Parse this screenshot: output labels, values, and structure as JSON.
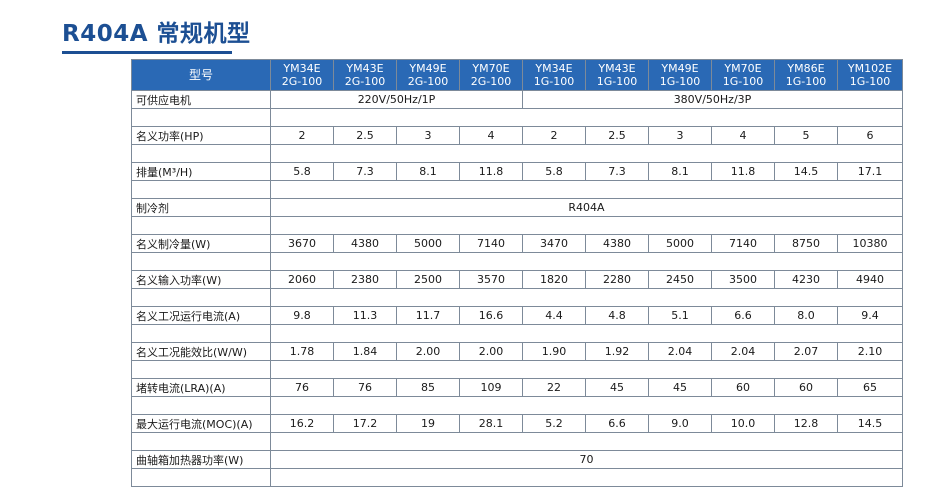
{
  "title": "R404A 常规机型",
  "table": {
    "param_header": "型号",
    "models": [
      {
        "line1": "YM34E",
        "line2": "2G-100"
      },
      {
        "line1": "YM43E",
        "line2": "2G-100"
      },
      {
        "line1": "YM49E",
        "line2": "2G-100"
      },
      {
        "line1": "YM70E",
        "line2": "2G-100"
      },
      {
        "line1": "YM34E",
        "line2": "1G-100"
      },
      {
        "line1": "YM43E",
        "line2": "1G-100"
      },
      {
        "line1": "YM49E",
        "line2": "1G-100"
      },
      {
        "line1": "YM70E",
        "line2": "1G-100"
      },
      {
        "line1": "YM86E",
        "line2": "1G-100"
      },
      {
        "line1": "YM102E",
        "line2": "1G-100"
      }
    ],
    "rows": [
      {
        "label": "可供应电机",
        "cells": [
          {
            "text": "220V/50Hz/1P",
            "span": 4
          },
          {
            "text": "380V/50Hz/3P",
            "span": 6
          }
        ]
      },
      {
        "label": "名义功率(HP)",
        "values": [
          "2",
          "2.5",
          "3",
          "4",
          "2",
          "2.5",
          "3",
          "4",
          "5",
          "6"
        ]
      },
      {
        "label": "排量(M³/H)",
        "values": [
          "5.8",
          "7.3",
          "8.1",
          "11.8",
          "5.8",
          "7.3",
          "8.1",
          "11.8",
          "14.5",
          "17.1"
        ]
      },
      {
        "label": "制冷剂",
        "cells": [
          {
            "text": "R404A",
            "span": 10
          }
        ]
      },
      {
        "label": "名义制冷量(W)",
        "values": [
          "3670",
          "4380",
          "5000",
          "7140",
          "3470",
          "4380",
          "5000",
          "7140",
          "8750",
          "10380"
        ]
      },
      {
        "label": "名义输入功率(W)",
        "values": [
          "2060",
          "2380",
          "2500",
          "3570",
          "1820",
          "2280",
          "2450",
          "3500",
          "4230",
          "4940"
        ]
      },
      {
        "label": "名义工况运行电流(A)",
        "values": [
          "9.8",
          "11.3",
          "11.7",
          "16.6",
          "4.4",
          "4.8",
          "5.1",
          "6.6",
          "8.0",
          "9.4"
        ]
      },
      {
        "label": "名义工况能效比(W/W)",
        "values": [
          "1.78",
          "1.84",
          "2.00",
          "2.00",
          "1.90",
          "1.92",
          "2.04",
          "2.04",
          "2.07",
          "2.10"
        ]
      },
      {
        "label": "堵转电流(LRA)(A)",
        "values": [
          "76",
          "76",
          "85",
          "109",
          "22",
          "45",
          "45",
          "60",
          "60",
          "65"
        ]
      },
      {
        "label": "最大运行电流(MOC)(A)",
        "values": [
          "16.2",
          "17.2",
          "19",
          "28.1",
          "5.2",
          "6.6",
          "9.0",
          "10.0",
          "12.8",
          "14.5"
        ]
      },
      {
        "label": "曲轴箱加热器功率(W)",
        "cells": [
          {
            "text": "70",
            "span": 10
          }
        ]
      }
    ]
  },
  "colors": {
    "title": "#1c4f93",
    "header_bg": "#2a69b5",
    "header_text": "#ffffff",
    "border": "#7d8a99"
  }
}
